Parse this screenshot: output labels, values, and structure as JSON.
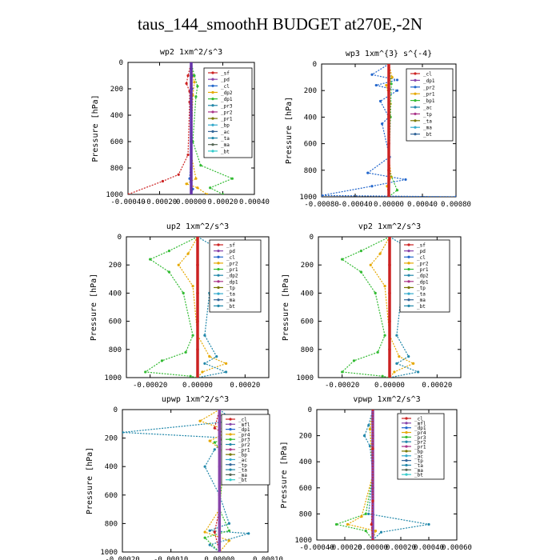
{
  "figure_title": "taus_144_smoothH  BUDGET at270E,-2N",
  "chart_data": [
    {
      "type": "line",
      "title": "wp2  1xm^2/s^3",
      "ylabel": "Pressure [hPa]",
      "ylim": [
        1000,
        0
      ],
      "xlim": [
        -0.0004,
        0.0004
      ],
      "xticks": [
        "-0.00040",
        "-0.00020",
        "0.00000",
        "0.00020",
        "0.00040"
      ],
      "yticks": [
        "0",
        "200",
        "400",
        "600",
        "800",
        "1000"
      ],
      "legend": [
        "_sf",
        "_pd",
        "_cl",
        "_dp2",
        "_dp1",
        "_pr3",
        "_pr2",
        "_pr1",
        "_bp",
        "_ac",
        "_ta",
        "_ma",
        "_bt"
      ],
      "series": [
        {
          "name": "_cl",
          "color": "#cc2222",
          "x": [
            0,
            -2e-05,
            -3e-05,
            -1e-05,
            -1e-05,
            -2e-05,
            -8e-05,
            -0.00018,
            -0.0004
          ],
          "y": [
            0,
            100,
            160,
            220,
            300,
            700,
            850,
            900,
            1000
          ]
        },
        {
          "name": "_dp1",
          "color": "#e6a800",
          "x": [
            0,
            1e-05,
            2e-05,
            1e-05,
            0,
            3e-05,
            -3e-05,
            4e-05,
            0.0001
          ],
          "y": [
            0,
            100,
            150,
            250,
            700,
            880,
            920,
            950,
            1000
          ]
        },
        {
          "name": "_pr1",
          "color": "#33bb33",
          "x": [
            0,
            2e-05,
            4e-05,
            3e-05,
            1e-05,
            6e-05,
            0.00026,
            0.00012,
            0.0002
          ],
          "y": [
            0,
            100,
            180,
            260,
            600,
            780,
            880,
            950,
            1000
          ]
        },
        {
          "name": "_ta",
          "color": "#2266cc",
          "x": [
            0,
            5e-06,
            5e-06,
            0,
            0,
            -1e-05,
            1e-05,
            0
          ],
          "y": [
            0,
            100,
            200,
            400,
            700,
            880,
            960,
            1000
          ]
        },
        {
          "name": "_bt",
          "color": "#6633aa",
          "x": [
            0,
            0,
            0,
            0,
            0,
            0
          ],
          "y": [
            0,
            200,
            400,
            600,
            800,
            1000
          ]
        }
      ]
    },
    {
      "type": "line",
      "title": "wp3  1xm^{3} s^{-4}",
      "ylabel": "Pressure [hPa]",
      "ylim": [
        1000,
        0
      ],
      "xlim": [
        -0.0008,
        0.0008
      ],
      "xticks": [
        "-0.00080",
        "-0.00040",
        "0.00000",
        "0.00040",
        "0.00080"
      ],
      "yticks": [
        "0",
        "200",
        "400",
        "600",
        "800",
        "1000"
      ],
      "legend": [
        "_cl",
        "_dp1",
        "_pr2",
        "_pr1",
        "_bp1",
        "_ac",
        "_tp",
        "_ta",
        "_ma",
        "_bt"
      ],
      "series": [
        {
          "name": "_ac",
          "color": "#2266cc",
          "x": [
            0,
            -0.0002,
            0.0001,
            -0.00015,
            0.0001,
            -0.0001,
            0,
            -8e-05,
            1e-05,
            -0.00025,
            0.0002,
            -0.0002,
            -0.0008,
            0.0008
          ],
          "y": [
            0,
            80,
            120,
            160,
            200,
            280,
            400,
            450,
            700,
            820,
            870,
            920,
            990,
            1000
          ]
        },
        {
          "name": "_pr2",
          "color": "#e6a800",
          "x": [
            0,
            4e-05,
            -3e-05,
            2e-05,
            0,
            3e-05,
            -2e-05,
            0
          ],
          "y": [
            0,
            100,
            160,
            300,
            700,
            850,
            920,
            1000
          ]
        },
        {
          "name": "_pr1",
          "color": "#33bb33",
          "x": [
            0,
            3e-05,
            2e-05,
            0,
            0.0001,
            0
          ],
          "y": [
            0,
            150,
            400,
            800,
            950,
            1000
          ]
        },
        {
          "name": "_bt",
          "color": "#cc2222",
          "x": [
            0,
            0,
            0,
            0,
            0,
            0
          ],
          "y": [
            0,
            200,
            400,
            600,
            800,
            1000
          ]
        }
      ]
    },
    {
      "type": "line",
      "title": "up2  1xm^2/s^3",
      "ylabel": "Pressure [hPa]",
      "ylim": [
        1000,
        0
      ],
      "xlim": [
        -0.0003,
        0.0003
      ],
      "xticks": [
        "-0.00020",
        "0.00000",
        "0.00020"
      ],
      "yticks": [
        "0",
        "200",
        "400",
        "600",
        "800",
        "1000"
      ],
      "legend": [
        "_sf",
        "_pd",
        "_cl",
        "_pr2",
        "_pr1",
        "_dp2",
        "_dp1",
        "_tp",
        "_ta",
        "_ma",
        "_bt"
      ],
      "series": [
        {
          "name": "_dp1",
          "color": "#33bb33",
          "x": [
            0,
            -0.00012,
            -0.0002,
            -0.00012,
            -6e-05,
            -2e-05,
            -5e-05,
            -0.00015,
            -0.00022,
            -3e-05,
            0
          ],
          "y": [
            0,
            100,
            160,
            250,
            400,
            700,
            820,
            880,
            960,
            990,
            1000
          ]
        },
        {
          "name": "_pr1",
          "color": "#e6a800",
          "x": [
            0,
            -4e-05,
            -8e-05,
            -2e-05,
            0,
            5e-05,
            0.00012,
            2e-05,
            0
          ],
          "y": [
            0,
            120,
            200,
            350,
            700,
            850,
            900,
            960,
            1000
          ]
        },
        {
          "name": "_ta",
          "color": "#2288aa",
          "x": [
            0,
            8e-05,
            0.00017,
            0.0001,
            5e-05,
            3e-05,
            8e-05,
            3e-05,
            0.00012,
            0
          ],
          "y": [
            0,
            80,
            160,
            250,
            400,
            700,
            850,
            900,
            960,
            1000
          ]
        },
        {
          "name": "_bt",
          "color": "#cc2222",
          "x": [
            0,
            0,
            0,
            0,
            0,
            0
          ],
          "y": [
            0,
            200,
            400,
            600,
            800,
            1000
          ]
        }
      ]
    },
    {
      "type": "line",
      "title": "vp2  1xm^2/s^3",
      "ylabel": "Pressure [hPa]",
      "ylim": [
        1000,
        0
      ],
      "xlim": [
        -0.0003,
        0.0003
      ],
      "xticks": [
        "-0.00020",
        "0.00000",
        "0.00020"
      ],
      "yticks": [
        "0",
        "200",
        "400",
        "600",
        "800",
        "1000"
      ],
      "legend": [
        "_sf",
        "_pd",
        "_cl",
        "_pr2",
        "_pr1",
        "_dp2",
        "_dp1",
        "_tp",
        "_ta",
        "_ma",
        "_bt"
      ],
      "series": [
        {
          "name": "_dp1",
          "color": "#33bb33",
          "x": [
            0,
            -0.00012,
            -0.0002,
            -0.00012,
            -6e-05,
            -2e-05,
            -5e-05,
            -0.00015,
            -0.0002,
            -3e-05,
            0
          ],
          "y": [
            0,
            100,
            160,
            250,
            400,
            700,
            820,
            880,
            960,
            990,
            1000
          ]
        },
        {
          "name": "_pr1",
          "color": "#e6a800",
          "x": [
            0,
            -4e-05,
            -8e-05,
            -2e-05,
            0,
            4e-05,
            0.0001,
            2e-05,
            0
          ],
          "y": [
            0,
            120,
            200,
            350,
            700,
            850,
            900,
            960,
            1000
          ]
        },
        {
          "name": "_ta",
          "color": "#2288aa",
          "x": [
            0,
            8e-05,
            0.00016,
            0.0001,
            5e-05,
            3e-05,
            8e-05,
            3e-05,
            0.00012,
            0
          ],
          "y": [
            0,
            80,
            160,
            250,
            400,
            700,
            850,
            900,
            960,
            1000
          ]
        },
        {
          "name": "_bt",
          "color": "#cc2222",
          "x": [
            0,
            0,
            0,
            0,
            0,
            0
          ],
          "y": [
            0,
            200,
            400,
            600,
            800,
            1000
          ]
        }
      ]
    },
    {
      "type": "line",
      "title": "upwp  1xm^2/s^3",
      "ylabel": "Pressure [hPa]",
      "ylim": [
        1000,
        0
      ],
      "xlim": [
        -0.0002,
        0.0001
      ],
      "xticks": [
        "-0.00020",
        "-0.00010",
        "0.00000",
        "0.00010"
      ],
      "yticks": [
        "0",
        "200",
        "400",
        "600",
        "800",
        "1000"
      ],
      "legend": [
        "_cl",
        "_mfl",
        "_dp1",
        "_pr4",
        "_pr3",
        "_pr2",
        "_pr1",
        "_bp",
        "_ac",
        "_tp",
        "_ta",
        "_ma",
        "_bt"
      ],
      "series": [
        {
          "name": "_ta",
          "color": "#2288aa",
          "x": [
            0,
            3e-05,
            -0.0002,
            2e-05,
            -1e-05,
            -3e-05,
            0,
            2e-05,
            -2e-05,
            6e-05,
            -2e-05,
            0
          ],
          "y": [
            0,
            80,
            160,
            200,
            280,
            400,
            600,
            800,
            850,
            870,
            950,
            1000
          ]
        },
        {
          "name": "_pr2",
          "color": "#e6a800",
          "x": [
            0,
            -4e-05,
            2e-05,
            -2e-05,
            1e-05,
            0,
            -3e-05,
            2e-05,
            0
          ],
          "y": [
            0,
            80,
            150,
            220,
            300,
            700,
            860,
            920,
            1000
          ]
        },
        {
          "name": "_dp1",
          "color": "#33bb33",
          "x": [
            0,
            1e-05,
            5e-05,
            -1e-05,
            1e-05,
            0,
            2e-05,
            -3e-05,
            0
          ],
          "y": [
            0,
            100,
            160,
            230,
            320,
            700,
            850,
            900,
            1000
          ]
        },
        {
          "name": "_pr4",
          "color": "#cc2222",
          "x": [
            0,
            -1e-05,
            1e-05,
            0,
            0,
            -1e-05,
            0
          ],
          "y": [
            0,
            130,
            170,
            220,
            700,
            860,
            1000
          ]
        },
        {
          "name": "_bt",
          "color": "#8844aa",
          "x": [
            0,
            0,
            0,
            0,
            0,
            0
          ],
          "y": [
            0,
            200,
            400,
            600,
            800,
            1000
          ]
        }
      ]
    },
    {
      "type": "line",
      "title": "vpwp  1xm^2/s^3",
      "ylabel": "Pressure [hPa]",
      "ylim": [
        1000,
        0
      ],
      "xlim": [
        -0.0004,
        0.0006
      ],
      "xticks": [
        "-0.00040",
        "-0.00020",
        "0.00000",
        "0.00020",
        "0.00040",
        "0.00060"
      ],
      "yticks": [
        "0",
        "200",
        "400",
        "600",
        "800",
        "1000"
      ],
      "legend": [
        "_cl",
        "_mfl",
        "_dp1",
        "_pr4",
        "_pr3",
        "_pr2",
        "_pr1",
        "_bp",
        "_ac",
        "_tp",
        "_ta",
        "_ma",
        "_bt"
      ],
      "series": [
        {
          "name": "_ta",
          "color": "#2288aa",
          "x": [
            0,
            -3e-05,
            -6e-05,
            -2e-05,
            0,
            -3e-05,
            0.0004,
            6e-05,
            0
          ],
          "y": [
            0,
            120,
            200,
            280,
            500,
            800,
            880,
            940,
            1000
          ]
        },
        {
          "name": "_pr1",
          "color": "#33bb33",
          "x": [
            0,
            -2e-05,
            0,
            -5e-05,
            -0.00026,
            -5e-05,
            0
          ],
          "y": [
            0,
            150,
            500,
            800,
            880,
            930,
            1000
          ]
        },
        {
          "name": "_pr2",
          "color": "#e6a800",
          "x": [
            0,
            -2e-05,
            0,
            -8e-05,
            -0.00018,
            2e-05,
            0
          ],
          "y": [
            0,
            150,
            500,
            820,
            880,
            930,
            1000
          ]
        },
        {
          "name": "_bt",
          "color": "#8844aa",
          "x": [
            0,
            0,
            0,
            0,
            0,
            0
          ],
          "y": [
            0,
            200,
            400,
            600,
            800,
            1000
          ]
        },
        {
          "name": "_pr4",
          "color": "#cc2222",
          "x": [
            0,
            0,
            0,
            -1e-05,
            0
          ],
          "y": [
            0,
            300,
            700,
            880,
            1000
          ]
        }
      ]
    }
  ]
}
